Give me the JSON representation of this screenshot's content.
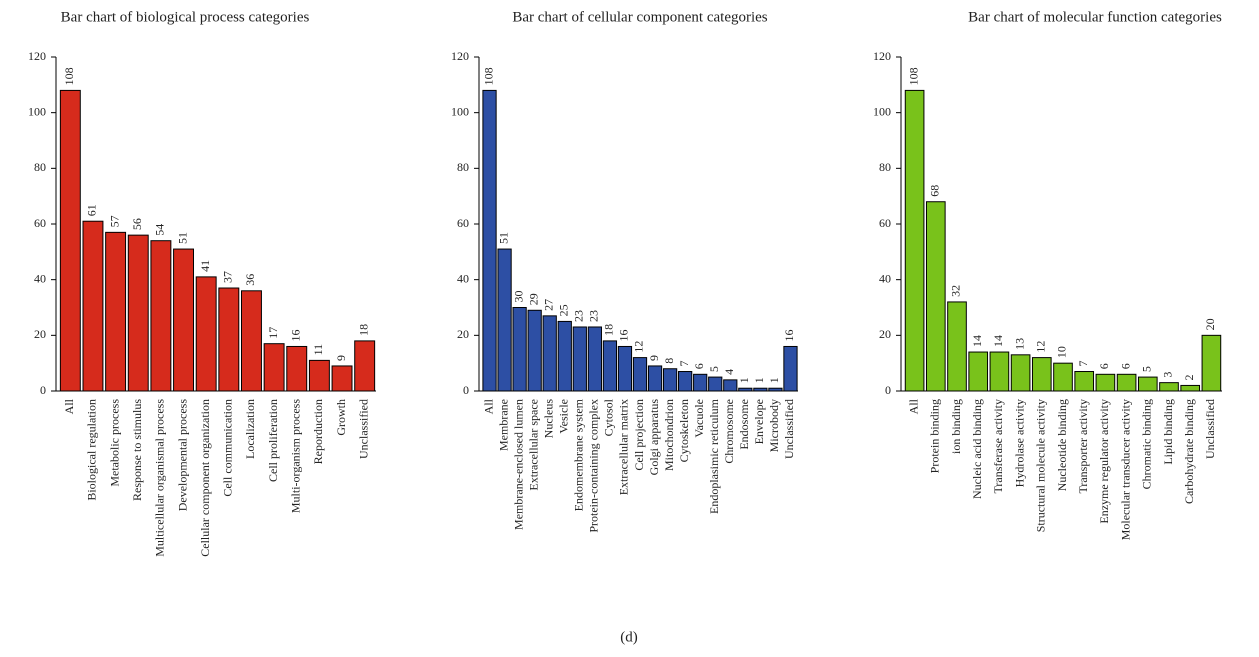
{
  "chart_data": [
    {
      "type": "bar",
      "title": "Bar chart of biological process categories",
      "categories": [
        "All",
        "Biological regulation",
        "Metabolic process",
        "Response to stimulus",
        "Multicellular organismal process",
        "Developmental process",
        "Cellular component organization",
        "Cell communication",
        "Localization",
        "Cell proliferation",
        "Multi-organism process",
        "Reporduction",
        "Growth",
        "Unclassified"
      ],
      "values": [
        108,
        61,
        57,
        56,
        54,
        51,
        41,
        37,
        36,
        17,
        16,
        11,
        9,
        18
      ],
      "color": "#d62b1c",
      "ylim": [
        0,
        120
      ],
      "yticks": [
        0,
        20,
        40,
        60,
        80,
        100,
        120
      ]
    },
    {
      "type": "bar",
      "title": "Bar chart of cellular component categories",
      "categories": [
        "All",
        "Membrane",
        "Membrane-enclosed lumen",
        "Extracellular space",
        "Nucleus",
        "Vesicle",
        "Endomembrane system",
        "Protein-containing complex",
        "Cytosol",
        "Extracellular matrix",
        "Cell projection",
        "Golgi apparatus",
        "Mitochondrion",
        "Cytoskeleton",
        "Vacuole",
        "Endoplasimic reticulum",
        "Chromosome",
        "Endosome",
        "Envelope",
        "Microbody",
        "Unclassified"
      ],
      "values": [
        108,
        51,
        30,
        29,
        27,
        25,
        23,
        23,
        18,
        16,
        12,
        9,
        8,
        7,
        6,
        5,
        4,
        1,
        1,
        1,
        16
      ],
      "color": "#2d4fa4",
      "ylim": [
        0,
        120
      ],
      "yticks": [
        0,
        20,
        40,
        60,
        80,
        100,
        120
      ]
    },
    {
      "type": "bar",
      "title": "Bar chart of molecular function categories",
      "categories": [
        "All",
        "Protein binding",
        "ion binding",
        "Nucleic acid binding",
        "Transferase activity",
        "Hydrolase activity",
        "Structural molecule activity",
        "Nucleotide binding",
        "Transporter activity",
        "Enzyme regulator activity",
        "Molecular transducer activity",
        "Chromatic binding",
        "Lipid binding",
        "Carbohydrate binding",
        "Unclassified"
      ],
      "values": [
        108,
        68,
        32,
        14,
        14,
        13,
        12,
        10,
        7,
        6,
        6,
        5,
        3,
        2,
        20
      ],
      "color": "#79c21b",
      "ylim": [
        0,
        120
      ],
      "yticks": [
        0,
        20,
        40,
        60,
        80,
        100,
        120
      ]
    }
  ],
  "caption": "(d)"
}
